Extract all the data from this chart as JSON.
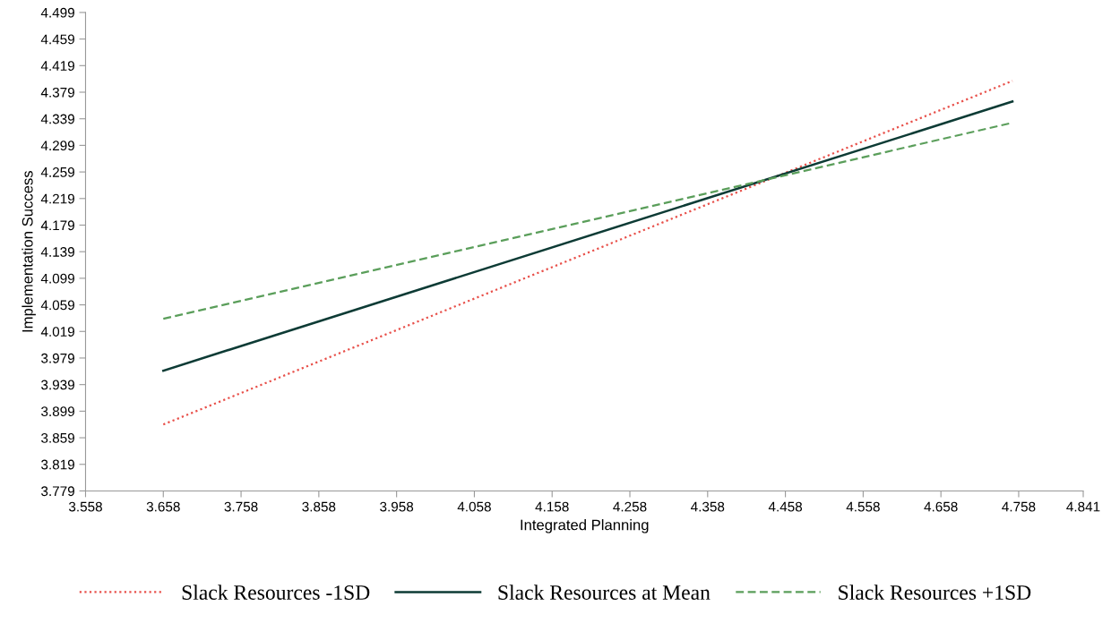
{
  "chart_data": {
    "type": "line",
    "xlabel": "Integrated Planning",
    "ylabel": "Implementation Success",
    "x": [
      3.658,
      4.75
    ],
    "series": [
      {
        "name": "Slack Resources -1SD",
        "color": "#e8504a",
        "line_style": "dotted",
        "values": [
          3.879,
          4.396
        ]
      },
      {
        "name": "Slack Resources at Mean",
        "color": "#0d3b35",
        "line_style": "solid",
        "values": [
          3.96,
          4.365
        ]
      },
      {
        "name": "Slack Resources +1SD",
        "color": "#5a9e5a",
        "line_style": "dashed",
        "values": [
          4.038,
          4.333
        ]
      }
    ],
    "xlim": [
      3.558,
      4.841
    ],
    "xticks": [
      3.558,
      3.658,
      3.758,
      3.858,
      3.958,
      4.058,
      4.158,
      4.258,
      4.358,
      4.458,
      4.558,
      4.658,
      4.758,
      4.841
    ],
    "ylim": [
      3.779,
      4.499
    ],
    "yticks": [
      3.779,
      3.819,
      3.859,
      3.899,
      3.939,
      3.979,
      4.019,
      4.059,
      4.099,
      4.139,
      4.179,
      4.219,
      4.259,
      4.299,
      4.339,
      4.379,
      4.419,
      4.459,
      4.499
    ],
    "grid": false,
    "legend": "bottom",
    "marker": "none"
  }
}
